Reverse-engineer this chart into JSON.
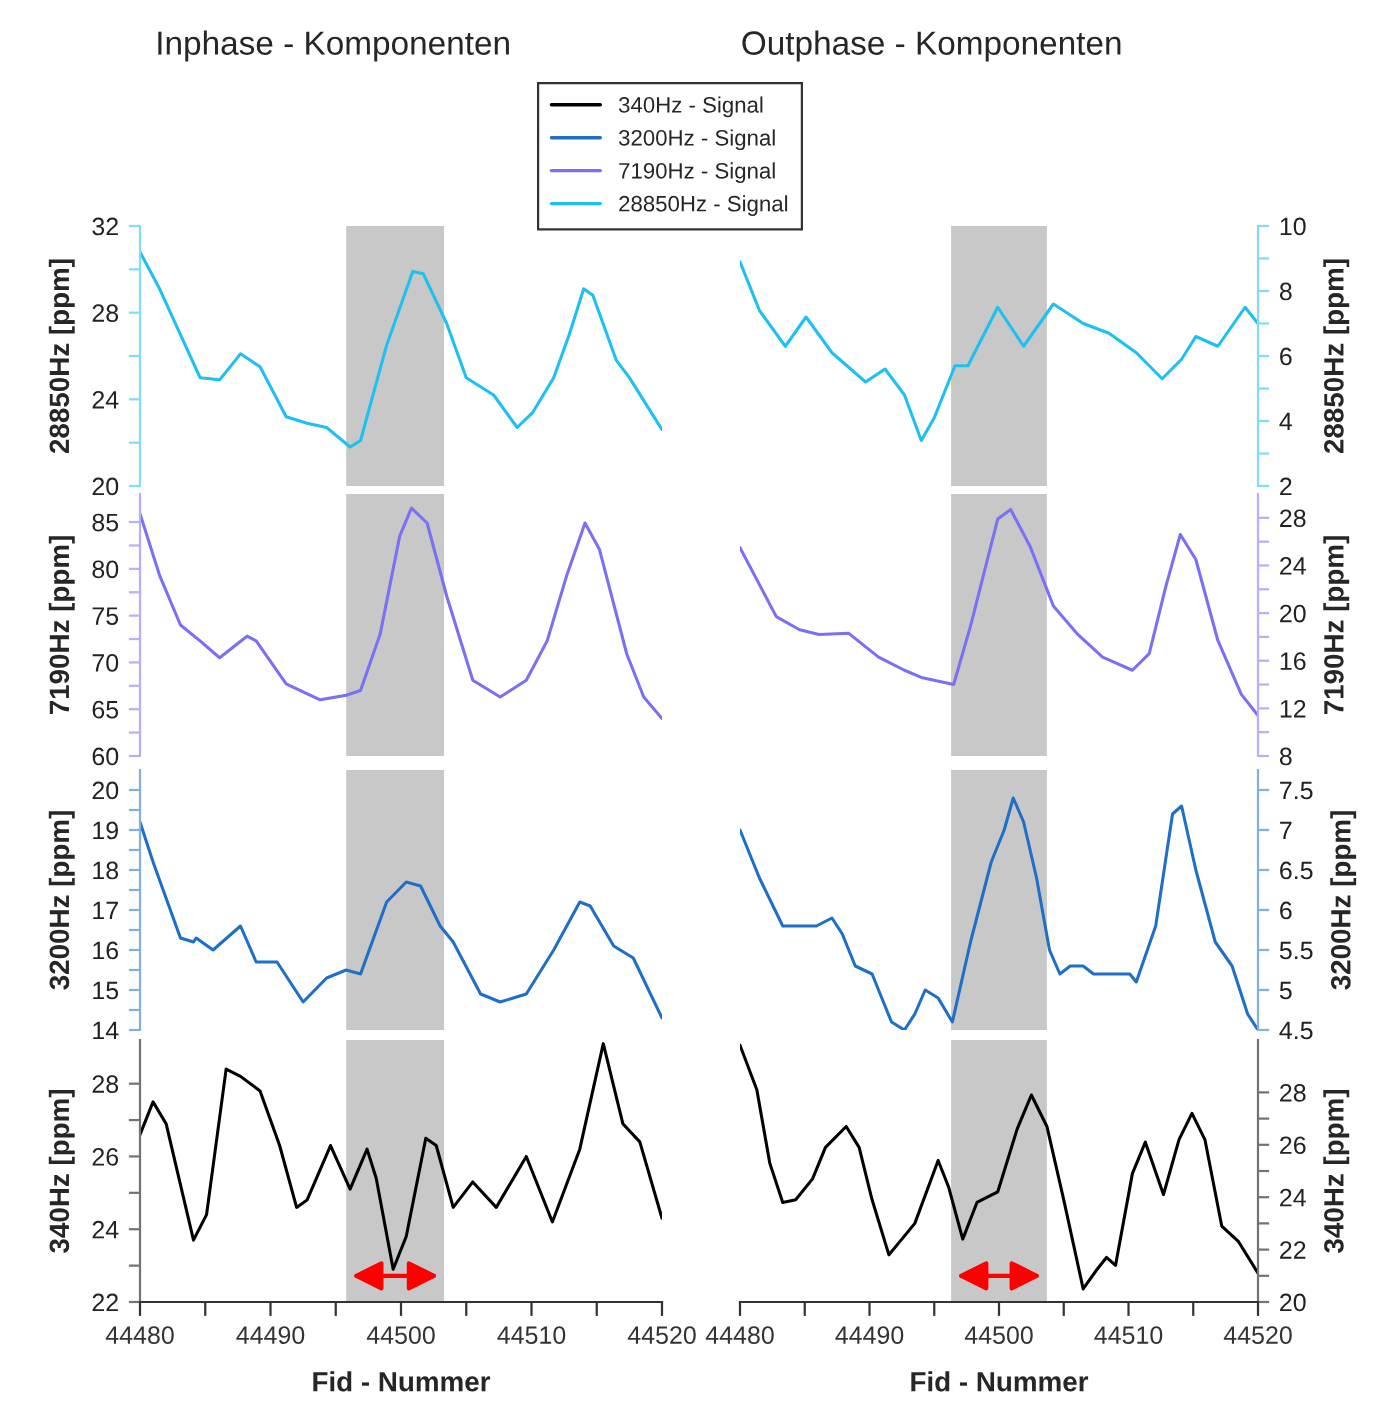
{
  "chart_data": [
    {
      "type": "line",
      "title": "Inphase - Komponenten",
      "ylabel": "28850Hz [ppm]",
      "legend": "top",
      "tick_labels": "y",
      "xlim": [
        44480,
        44520
      ],
      "ylim": [
        20,
        32
      ],
      "yticks": [
        20,
        {
          "value": 22,
          "label": null
        },
        24,
        {
          "value": 26,
          "label": null
        },
        28,
        {
          "value": 30,
          "label": null
        },
        32
      ],
      "bands": [
        {
          "axis": "x",
          "from": 44495.8,
          "to": 44503.3,
          "color": "#c8c8c8"
        }
      ],
      "series": [
        {
          "name": "28850Hz - Signal",
          "color": "#1ec0f0",
          "x": [
            44480,
            44481.5,
            44484.6,
            44486.1,
            44487.7,
            44489.2,
            44491.2,
            44492.8,
            44494.3,
            44496.1,
            44496.9,
            44498.9,
            44500.9,
            44501.7,
            44503.5,
            44505.0,
            44507.1,
            44508.9,
            44510.1,
            44511.7,
            44512.9,
            44514.0,
            44514.7,
            44516.5,
            44517.5,
            44520
          ],
          "values": [
            30.8,
            29.1,
            25.0,
            24.9,
            26.1,
            25.5,
            23.2,
            22.9,
            22.7,
            21.8,
            22.1,
            26.5,
            29.9,
            29.8,
            27.5,
            25.0,
            24.2,
            22.7,
            23.4,
            25.0,
            27.0,
            29.1,
            28.8,
            25.8,
            25.0,
            22.6
          ]
        }
      ]
    },
    {
      "type": "line",
      "title": "Outphase - Komponenten",
      "y2label": "28850Hz [ppm]",
      "tick_labels": "y",
      "xlim": [
        44480,
        44520
      ],
      "y2lim": [
        2,
        10
      ],
      "y2ticks": [
        2,
        {
          "value": 3,
          "label": null
        },
        4,
        {
          "value": 5,
          "label": null
        },
        6,
        {
          "value": 7,
          "label": null
        },
        8,
        {
          "value": 9,
          "label": null
        },
        10
      ],
      "bands": [
        {
          "axis": "x",
          "from": 44496.3,
          "to": 44503.7,
          "color": "#c8c8c8"
        }
      ],
      "series": [
        {
          "color": "#1ec0f0",
          "axis": "y2",
          "x": [
            44480,
            44481.5,
            44483.5,
            44485.1,
            44487.1,
            44489.7,
            44491.2,
            44492.7,
            44494.0,
            44495.0,
            44496.6,
            44497.6,
            44499.9,
            44501.9,
            44504.2,
            44506.5,
            44508.5,
            44510.6,
            44512.6,
            44514.1,
            44515.2,
            44516.9,
            44519.0,
            44520
          ],
          "values": [
            8.9,
            7.4,
            6.3,
            7.2,
            6.1,
            5.2,
            5.6,
            4.8,
            3.4,
            4.1,
            5.7,
            5.7,
            7.5,
            6.3,
            7.6,
            7.0,
            6.7,
            6.1,
            5.3,
            5.9,
            6.6,
            6.3,
            7.5,
            7.0
          ]
        }
      ]
    },
    {
      "type": "line",
      "ylabel": "7190Hz [ppm]",
      "tick_labels": "y",
      "xlim": [
        44480,
        44520
      ],
      "ylim": [
        60,
        88
      ],
      "yticks": [
        60,
        {
          "value": 62.5,
          "label": null
        },
        65,
        {
          "value": 67.5,
          "label": null
        },
        70,
        {
          "value": 72.5,
          "label": null
        },
        75,
        {
          "value": 77.5,
          "label": null
        },
        80,
        {
          "value": 82.5,
          "label": null
        },
        85
      ],
      "bands": [
        {
          "axis": "x",
          "from": 44495.8,
          "to": 44503.3,
          "color": "#c8c8c8"
        }
      ],
      "series": [
        {
          "name": "7190Hz - Signal",
          "color": "#7b70f4",
          "x": [
            44480,
            44481.5,
            44483.1,
            44484.6,
            44486.1,
            44488.2,
            44488.9,
            44491.2,
            44493.8,
            44495.8,
            44496.9,
            44498.4,
            44499.9,
            44500.8,
            44502.0,
            44503.5,
            44505.5,
            44507.6,
            44509.6,
            44511.2,
            44512.7,
            44514.1,
            44515.2,
            44517.3,
            44518.6,
            44520
          ],
          "values": [
            85.9,
            79.3,
            74.0,
            72.3,
            70.5,
            72.8,
            72.3,
            67.7,
            66.0,
            66.5,
            67.0,
            73.0,
            83.5,
            86.5,
            84.9,
            77.1,
            68.1,
            66.3,
            68.1,
            72.3,
            79.3,
            84.9,
            82.1,
            70.9,
            66.3,
            64.0
          ]
        }
      ]
    },
    {
      "type": "line",
      "y2label": "7190Hz [ppm]",
      "tick_labels": "y",
      "xlim": [
        44480,
        44520
      ],
      "y2lim": [
        8,
        30
      ],
      "y2ticks": [
        8,
        {
          "value": 10,
          "label": null
        },
        12,
        {
          "value": 14,
          "label": null
        },
        16,
        {
          "value": 18,
          "label": null
        },
        20,
        {
          "value": 22,
          "label": null
        },
        24,
        {
          "value": 26,
          "label": null
        },
        28
      ],
      "bands": [
        {
          "axis": "x",
          "from": 44496.3,
          "to": 44503.7,
          "color": "#c8c8c8"
        }
      ],
      "series": [
        {
          "color": "#7b70f4",
          "axis": "y2",
          "x": [
            44480,
            44482.8,
            44484.6,
            44486.1,
            44488.4,
            44490.7,
            44492.7,
            44494.0,
            44496.5,
            44497.8,
            44499.9,
            44500.9,
            44502.4,
            44504.2,
            44506.0,
            44508.0,
            44510.3,
            44511.6,
            44512.9,
            44514.0,
            44515.2,
            44516.9,
            44518.7,
            44520
          ],
          "values": [
            25.5,
            19.7,
            18.6,
            18.2,
            18.3,
            16.3,
            15.2,
            14.6,
            14.0,
            18.9,
            27.9,
            28.7,
            25.6,
            20.6,
            18.3,
            16.3,
            15.2,
            16.6,
            22.3,
            26.6,
            24.5,
            17.7,
            13.2,
            11.4
          ]
        }
      ]
    },
    {
      "type": "line",
      "ylabel": "3200Hz [ppm]",
      "tick_labels": "y",
      "xlim": [
        44480,
        44520
      ],
      "ylim": [
        14,
        20.5
      ],
      "yticks": [
        14,
        {
          "value": 14.5,
          "label": null
        },
        15,
        {
          "value": 15.5,
          "label": null
        },
        16,
        {
          "value": 16.5,
          "label": null
        },
        17,
        {
          "value": 17.5,
          "label": null
        },
        18,
        {
          "value": 18.5,
          "label": null
        },
        19,
        {
          "value": 19.5,
          "label": null
        },
        20
      ],
      "bands": [
        {
          "axis": "x",
          "from": 44495.8,
          "to": 44503.3,
          "color": "#c8c8c8"
        }
      ],
      "series": [
        {
          "name": "3200Hz - Signal",
          "color": "#1f6fc6",
          "x": [
            44480,
            44481.0,
            44483.1,
            44484.1,
            44484.3,
            44485.6,
            44487.7,
            44488.9,
            44490.5,
            44492.5,
            44494.3,
            44495.8,
            44496.9,
            44498.9,
            44500.4,
            44501.5,
            44503.0,
            44504.0,
            44506.1,
            44507.6,
            44509.6,
            44511.7,
            44513.7,
            44514.5,
            44516.3,
            44517.8,
            44520
          ],
          "values": [
            19.2,
            18.2,
            16.3,
            16.2,
            16.3,
            16.0,
            16.6,
            15.7,
            15.7,
            14.7,
            15.3,
            15.5,
            15.4,
            17.2,
            17.7,
            17.6,
            16.6,
            16.2,
            14.9,
            14.7,
            14.9,
            16.0,
            17.2,
            17.1,
            16.1,
            15.8,
            14.3
          ]
        }
      ]
    },
    {
      "type": "line",
      "y2label": "3200Hz [ppm]",
      "tick_labels": "y",
      "xlim": [
        44480,
        44520
      ],
      "y2lim": [
        4.5,
        7.75
      ],
      "y2ticks": [
        4.5,
        5,
        5.5,
        6,
        6.5,
        7,
        7.5
      ],
      "bands": [
        {
          "axis": "x",
          "from": 44496.3,
          "to": 44503.7,
          "color": "#c8c8c8"
        }
      ],
      "series": [
        {
          "color": "#1f6fc6",
          "axis": "y2",
          "x": [
            44480,
            44481.5,
            44483.3,
            44485.4,
            44485.9,
            44487.1,
            44487.9,
            44488.9,
            44490.2,
            44491.7,
            44492.7,
            44493.5,
            44494.3,
            44495.3,
            44496.4,
            44497.8,
            44499.4,
            44500.4,
            44501.1,
            44501.9,
            44502.9,
            44503.9,
            44504.7,
            44505.5,
            44506.5,
            44507.3,
            44510.1,
            44510.6,
            44512.1,
            44513.4,
            44514.1,
            44515.2,
            44516.7,
            44518.0,
            44519.2,
            44520
          ],
          "values": [
            7.0,
            6.4,
            5.8,
            5.8,
            5.8,
            5.9,
            5.7,
            5.3,
            5.2,
            4.6,
            4.5,
            4.7,
            5.0,
            4.9,
            4.6,
            5.6,
            6.6,
            7.0,
            7.4,
            7.1,
            6.4,
            5.5,
            5.2,
            5.3,
            5.3,
            5.2,
            5.2,
            5.1,
            5.8,
            7.2,
            7.3,
            6.5,
            5.6,
            5.3,
            4.7,
            4.5
          ]
        }
      ]
    },
    {
      "type": "line",
      "xlabel": "Fid - Nummer",
      "ylabel": "340Hz [ppm]",
      "xlim": [
        44480,
        44520
      ],
      "xticks": [
        44480,
        {
          "value": 44485,
          "label": null
        },
        44490,
        {
          "value": 44495,
          "label": null
        },
        44500,
        {
          "value": 44505,
          "label": null
        },
        44510,
        {
          "value": 44515,
          "label": null
        },
        44520
      ],
      "ylim": [
        22,
        29.2
      ],
      "yticks": [
        22,
        {
          "value": 23,
          "label": null
        },
        24,
        {
          "value": 25,
          "label": null
        },
        26,
        {
          "value": 27,
          "label": null
        },
        28
      ],
      "bands": [
        {
          "axis": "x",
          "from": 44495.8,
          "to": 44503.3,
          "color": "#c8c8c8"
        }
      ],
      "series": [
        {
          "name": "340Hz - Signal",
          "color": "#000000",
          "x": [
            44480,
            44481.0,
            44482.0,
            44484.1,
            44485.1,
            44486.6,
            44487.7,
            44489.2,
            44490.7,
            44492.0,
            44492.8,
            44494.6,
            44496.1,
            44497.4,
            44498.1,
            44499.4,
            44500.4,
            44501.9,
            44502.7,
            44504.0,
            44505.5,
            44507.3,
            44509.6,
            44511.6,
            44513.7,
            44515.5,
            44517.0,
            44518.3,
            44520
          ],
          "values": [
            26.6,
            27.5,
            26.9,
            23.7,
            24.4,
            28.4,
            28.2,
            27.8,
            26.3,
            24.6,
            24.8,
            26.3,
            25.1,
            26.2,
            25.4,
            22.9,
            23.8,
            26.5,
            26.3,
            24.6,
            25.3,
            24.6,
            26.0,
            24.2,
            26.2,
            29.1,
            26.9,
            26.4,
            24.3
          ]
        }
      ]
    },
    {
      "type": "line",
      "xlabel": "Fid - Nummer",
      "y2label": "340Hz [ppm]",
      "xlim": [
        44480,
        44520
      ],
      "xticks": [
        44480,
        {
          "value": 44485,
          "label": null
        },
        44490,
        {
          "value": 44495,
          "label": null
        },
        44500,
        {
          "value": 44505,
          "label": null
        },
        44510,
        {
          "value": 44515,
          "label": null
        },
        44520
      ],
      "y2lim": [
        20,
        30
      ],
      "y2ticks": [
        20,
        {
          "value": 21,
          "label": null
        },
        22,
        {
          "value": 23,
          "label": null
        },
        24,
        {
          "value": 25,
          "label": null
        },
        26,
        {
          "value": 27,
          "label": null
        },
        28
      ],
      "bands": [
        {
          "axis": "x",
          "from": 44496.3,
          "to": 44503.7,
          "color": "#c8c8c8"
        }
      ],
      "series": [
        {
          "color": "#000000",
          "axis": "y2",
          "x": [
            44480,
            44481.3,
            44482.3,
            44483.3,
            44484.3,
            44485.6,
            44486.6,
            44488.2,
            44489.2,
            44490.2,
            44491.5,
            44492.5,
            44493.5,
            44495.3,
            44496.1,
            44497.2,
            44498.3,
            44499.9,
            44501.4,
            44502.5,
            44503.7,
            44505.0,
            44506.5,
            44507.5,
            44508.3,
            44509.0,
            44510.3,
            44511.3,
            44512.7,
            44513.9,
            44514.9,
            44515.9,
            44517.2,
            44518.5,
            44520
          ],
          "values": [
            29.8,
            28.1,
            25.3,
            23.8,
            23.9,
            24.7,
            25.9,
            26.7,
            25.9,
            23.9,
            21.8,
            22.4,
            23.0,
            25.4,
            24.4,
            22.4,
            23.8,
            24.2,
            26.6,
            27.9,
            26.7,
            23.9,
            20.5,
            21.2,
            21.7,
            21.4,
            24.9,
            26.1,
            24.1,
            26.2,
            27.2,
            26.2,
            22.9,
            22.3,
            21.1
          ]
        }
      ]
    }
  ]
}
